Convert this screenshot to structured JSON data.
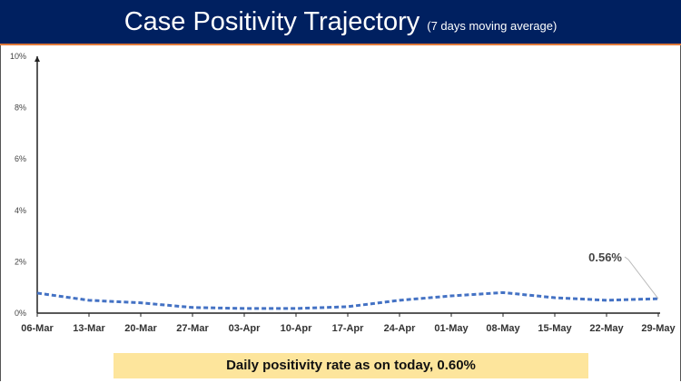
{
  "header": {
    "title": "Case Positivity Trajectory",
    "subtitle": "(7 days moving average)"
  },
  "banner": {
    "text": "Daily positivity rate as on today, 0.60%"
  },
  "chart_data": {
    "type": "line",
    "title": "Case Positivity Trajectory",
    "subtitle": "(7 days moving average)",
    "categories": [
      "06-Mar",
      "13-Mar",
      "20-Mar",
      "27-Mar",
      "03-Apr",
      "10-Apr",
      "17-Apr",
      "24-Apr",
      "01-May",
      "08-May",
      "15-May",
      "22-May",
      "29-May"
    ],
    "series": [
      {
        "values": [
          0.78,
          0.5,
          0.4,
          0.22,
          0.18,
          0.18,
          0.25,
          0.5,
          0.67,
          0.8,
          0.6,
          0.5,
          0.56
        ]
      }
    ],
    "y_ticks": [
      "0%",
      "2%",
      "4%",
      "6%",
      "8%",
      "10%"
    ],
    "ylim": [
      0,
      10
    ],
    "y_unit": "%",
    "grid": false,
    "line_style": "dashed",
    "line_color": "#4472c4",
    "annotation": {
      "label": "0.56%",
      "at": "29-May"
    }
  }
}
